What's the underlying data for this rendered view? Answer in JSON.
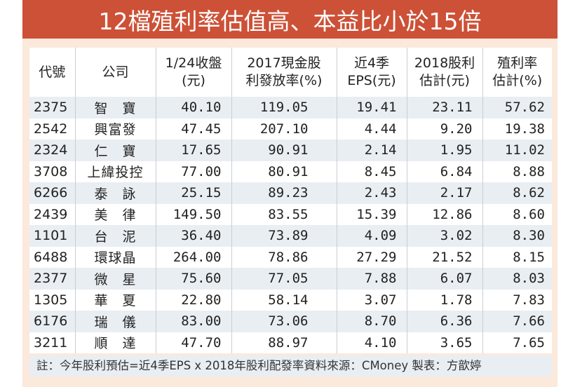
{
  "title": "12檔殖利率估值高、本益比小於15倍",
  "colors": {
    "title_band": "#cc5137",
    "card_bg": "#fbe9dc",
    "row_alt": "#e9eef3",
    "row": "#ffffff"
  },
  "table": {
    "headers": [
      [
        "代號",
        ""
      ],
      [
        "公司",
        ""
      ],
      [
        "1/24收盤",
        "(元)"
      ],
      [
        "2017現金股",
        "利發放率(%)"
      ],
      [
        "近4季",
        "EPS(元)"
      ],
      [
        "2018股利",
        "估計(元)"
      ],
      [
        "殖利率",
        "估計(%)"
      ]
    ],
    "rows": [
      [
        "2375",
        "智　寶",
        "40.10",
        "119.05",
        "19.41",
        "23.11",
        "57.62"
      ],
      [
        "2542",
        "興富發",
        "47.45",
        "207.10",
        "4.44",
        "9.20",
        "19.38"
      ],
      [
        "2324",
        "仁　寶",
        "17.65",
        "90.91",
        "2.14",
        "1.95",
        "11.02"
      ],
      [
        "3708",
        "上緯投控",
        "77.00",
        "80.91",
        "8.45",
        "6.84",
        "8.88"
      ],
      [
        "6266",
        "泰　詠",
        "25.15",
        "89.23",
        "2.43",
        "2.17",
        "8.62"
      ],
      [
        "2439",
        "美　律",
        "149.50",
        "83.55",
        "15.39",
        "12.86",
        "8.60"
      ],
      [
        "1101",
        "台　泥",
        "36.40",
        "73.89",
        "4.09",
        "3.02",
        "8.30"
      ],
      [
        "6488",
        "環球晶",
        "264.00",
        "78.86",
        "27.29",
        "21.52",
        "8.15"
      ],
      [
        "2377",
        "微　星",
        "75.60",
        "77.05",
        "7.88",
        "6.07",
        "8.03"
      ],
      [
        "1305",
        "華　夏",
        "22.80",
        "58.14",
        "3.07",
        "1.78",
        "7.83"
      ],
      [
        "6176",
        "瑞　儀",
        "83.00",
        "73.06",
        "8.70",
        "6.36",
        "7.66"
      ],
      [
        "3211",
        "順　達",
        "47.70",
        "88.97",
        "4.10",
        "3.65",
        "7.65"
      ]
    ]
  },
  "note": "註：今年股利預估=近4季EPS x 2018年股利配發率資料來源：CMoney 製表：方歆婷",
  "chart_data": {
    "type": "table",
    "title": "12檔殖利率估值高、本益比小於15倍",
    "columns": [
      "代號",
      "公司",
      "1/24收盤(元)",
      "2017現金股利發放率(%)",
      "近4季EPS(元)",
      "2018股利估計(元)",
      "殖利率估計(%)"
    ],
    "rows": [
      [
        "2375",
        "智寶",
        40.1,
        119.05,
        19.41,
        23.11,
        57.62
      ],
      [
        "2542",
        "興富發",
        47.45,
        207.1,
        4.44,
        9.2,
        19.38
      ],
      [
        "2324",
        "仁寶",
        17.65,
        90.91,
        2.14,
        1.95,
        11.02
      ],
      [
        "3708",
        "上緯投控",
        77.0,
        80.91,
        8.45,
        6.84,
        8.88
      ],
      [
        "6266",
        "泰詠",
        25.15,
        89.23,
        2.43,
        2.17,
        8.62
      ],
      [
        "2439",
        "美律",
        149.5,
        83.55,
        15.39,
        12.86,
        8.6
      ],
      [
        "1101",
        "台泥",
        36.4,
        73.89,
        4.09,
        3.02,
        8.3
      ],
      [
        "6488",
        "環球晶",
        264.0,
        78.86,
        27.29,
        21.52,
        8.15
      ],
      [
        "2377",
        "微星",
        75.6,
        77.05,
        7.88,
        6.07,
        8.03
      ],
      [
        "1305",
        "華夏",
        22.8,
        58.14,
        3.07,
        1.78,
        7.83
      ],
      [
        "6176",
        "瑞儀",
        83.0,
        73.06,
        8.7,
        6.36,
        7.66
      ],
      [
        "3211",
        "順達",
        47.7,
        88.97,
        4.1,
        3.65,
        7.65
      ]
    ],
    "note": "註：今年股利預估=近4季EPS x 2018年股利配發率資料來源：CMoney 製表：方歆婷"
  }
}
